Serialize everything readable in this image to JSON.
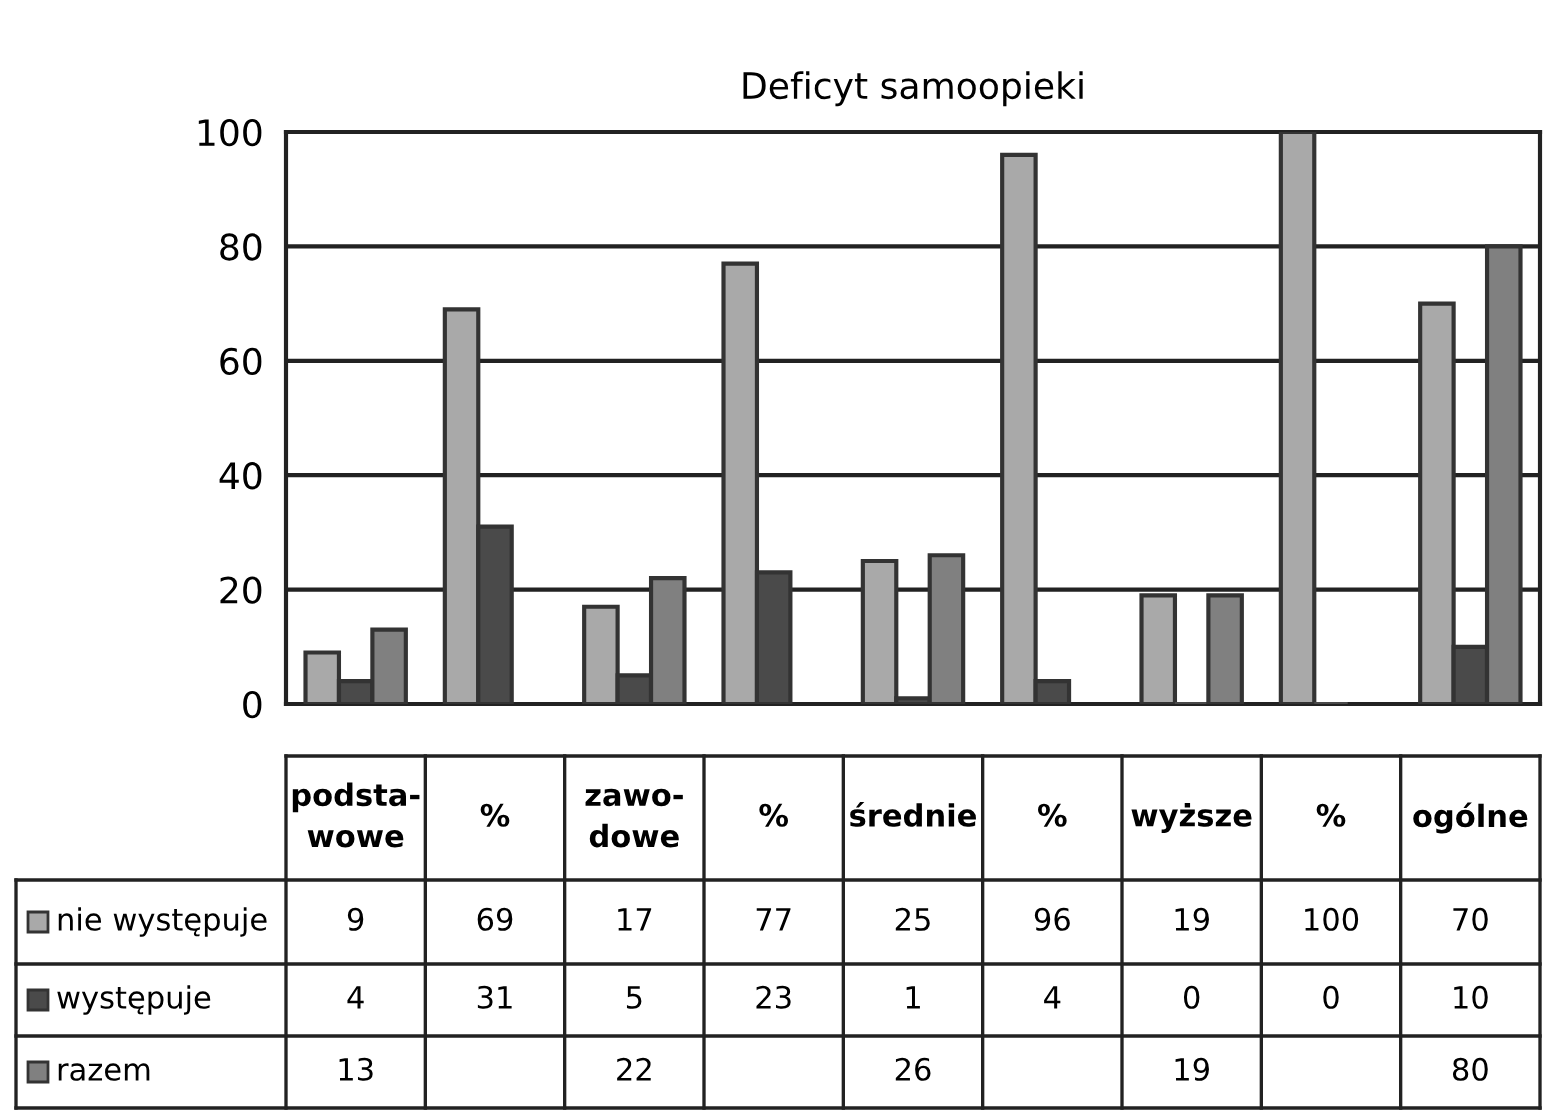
{
  "chart_data": {
    "type": "bar",
    "title": "Deficyt samoopieki",
    "categories": [
      "podsta-\nwowe",
      "%",
      "zawo-\ndowe",
      "%",
      "średnie",
      "%",
      "wyższe",
      "%",
      "ogólne"
    ],
    "series": [
      {
        "name": "nie występuje",
        "color": "#a9a9a9",
        "values": [
          9,
          69,
          17,
          77,
          25,
          96,
          19,
          100,
          70
        ]
      },
      {
        "name": "występuje",
        "color": "#4a4a4a",
        "values": [
          4,
          31,
          5,
          23,
          1,
          4,
          0,
          0,
          10
        ]
      },
      {
        "name": "razem",
        "color": "#808080",
        "values": [
          13,
          null,
          22,
          null,
          26,
          null,
          19,
          null,
          80
        ]
      }
    ],
    "ylim": [
      0,
      100
    ],
    "yticks": [
      0,
      20,
      40,
      60,
      80,
      100
    ],
    "grid": "y",
    "data_labels": true,
    "legend": "bottom left"
  }
}
